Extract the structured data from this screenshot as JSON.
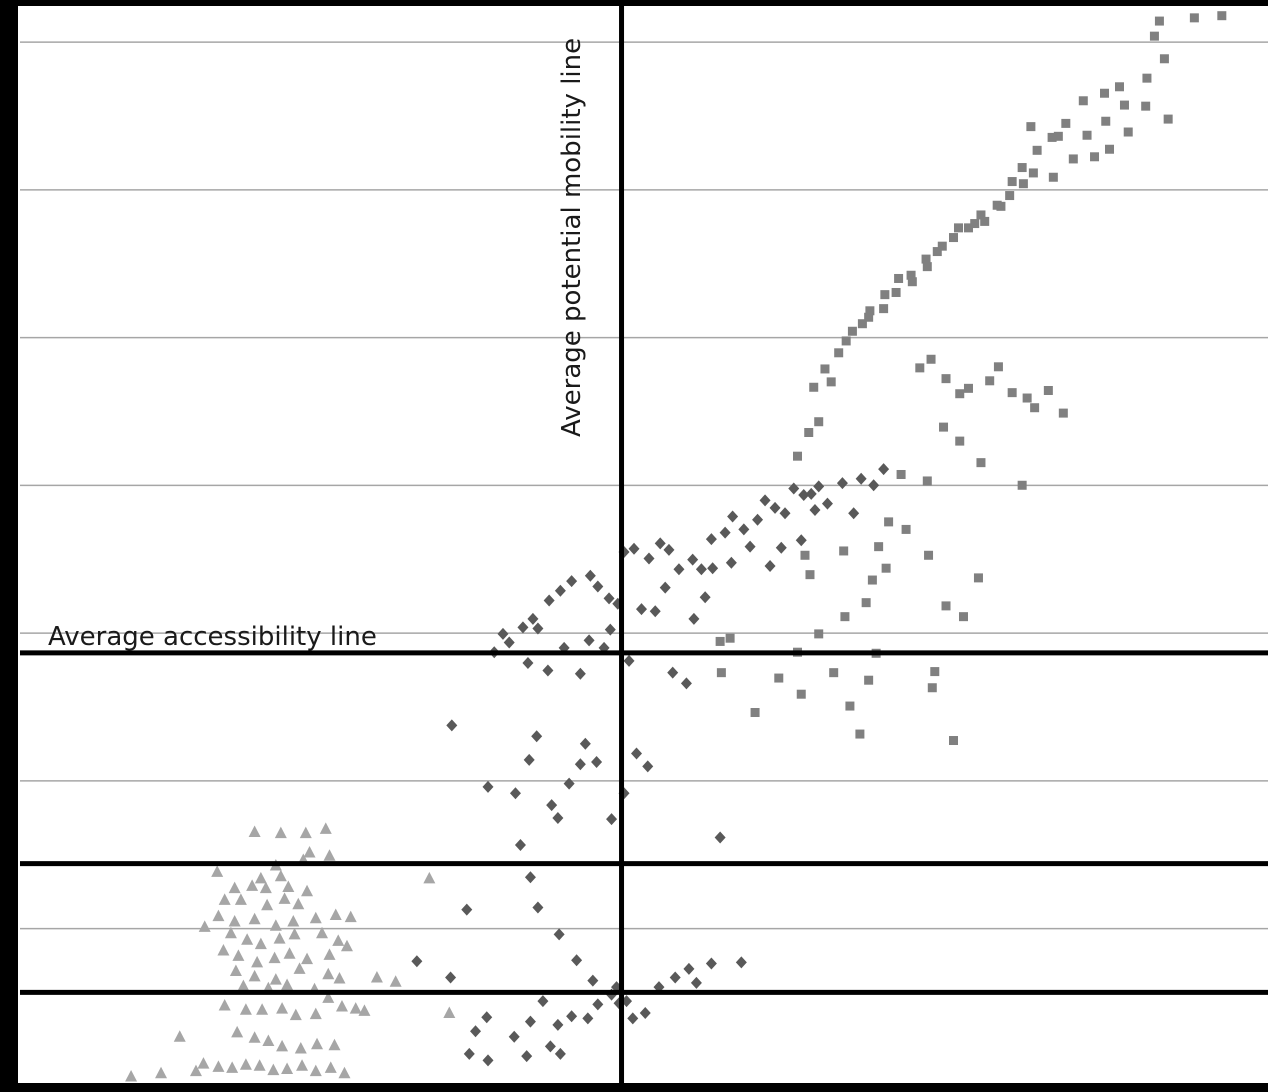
{
  "chart_data": {
    "type": "scatter",
    "title": "",
    "xlabel": "",
    "ylabel": "",
    "xlim": [
      0,
      100
    ],
    "ylim": [
      0,
      100
    ],
    "grid": true,
    "gridlines_y": [
      14.33,
      28.05,
      41.77,
      55.49,
      69.21,
      82.93,
      96.65
    ],
    "colors": {
      "background": "#ffffff",
      "frame": "#000000",
      "grid": "#a6a6a6",
      "reference_line": "#000000",
      "triangles": "#a6a6a6",
      "diamonds": "#595959",
      "squares": "#808080"
    },
    "annotations": {
      "horizontal_label": "Average accessibility line",
      "vertical_label": "Average potential mobility line"
    },
    "reference_lines": {
      "vertical_x": 48.2,
      "horizontal_y": [
        39.94,
        20.37,
        8.42
      ]
    },
    "series": [
      {
        "marker": "triangle",
        "points": [
          [
            18.8,
            23.3
          ],
          [
            20.9,
            23.2
          ],
          [
            22.9,
            23.2
          ],
          [
            24.5,
            23.6
          ],
          [
            23.2,
            21.4
          ],
          [
            24.8,
            21.1
          ],
          [
            22.7,
            20.7
          ],
          [
            20.5,
            20.2
          ],
          [
            15.8,
            19.6
          ],
          [
            19.3,
            19.0
          ],
          [
            20.9,
            19.2
          ],
          [
            32.8,
            19.0
          ],
          [
            17.2,
            18.1
          ],
          [
            18.6,
            18.3
          ],
          [
            19.7,
            18.1
          ],
          [
            21.5,
            18.2
          ],
          [
            23.0,
            17.8
          ],
          [
            16.4,
            17.0
          ],
          [
            17.7,
            17.0
          ],
          [
            19.8,
            16.5
          ],
          [
            21.2,
            17.1
          ],
          [
            22.3,
            16.6
          ],
          [
            15.9,
            15.5
          ],
          [
            17.2,
            15.0
          ],
          [
            18.8,
            15.2
          ],
          [
            20.5,
            14.6
          ],
          [
            21.9,
            15.0
          ],
          [
            23.7,
            15.3
          ],
          [
            25.3,
            15.6
          ],
          [
            26.5,
            15.4
          ],
          [
            14.8,
            14.5
          ],
          [
            16.9,
            13.9
          ],
          [
            18.2,
            13.3
          ],
          [
            19.3,
            12.9
          ],
          [
            20.8,
            13.4
          ],
          [
            22.0,
            13.8
          ],
          [
            24.2,
            13.9
          ],
          [
            25.5,
            13.2
          ],
          [
            26.2,
            12.7
          ],
          [
            16.3,
            12.3
          ],
          [
            17.5,
            11.8
          ],
          [
            19.0,
            11.2
          ],
          [
            20.4,
            11.6
          ],
          [
            21.6,
            12.0
          ],
          [
            23.0,
            11.5
          ],
          [
            24.8,
            11.9
          ],
          [
            28.6,
            9.8
          ],
          [
            30.1,
            9.4
          ],
          [
            17.3,
            10.4
          ],
          [
            18.8,
            9.9
          ],
          [
            20.5,
            9.6
          ],
          [
            22.4,
            10.6
          ],
          [
            24.7,
            10.1
          ],
          [
            25.6,
            9.7
          ],
          [
            17.9,
            9.0
          ],
          [
            19.9,
            8.8
          ],
          [
            21.4,
            9.1
          ],
          [
            23.6,
            8.7
          ],
          [
            24.7,
            7.9
          ],
          [
            25.8,
            7.1
          ],
          [
            26.9,
            6.9
          ],
          [
            27.6,
            6.7
          ],
          [
            34.4,
            6.5
          ],
          [
            16.4,
            7.2
          ],
          [
            18.1,
            6.8
          ],
          [
            19.4,
            6.8
          ],
          [
            21.0,
            6.9
          ],
          [
            22.1,
            6.3
          ],
          [
            23.7,
            6.4
          ],
          [
            12.8,
            4.3
          ],
          [
            17.4,
            4.7
          ],
          [
            18.8,
            4.2
          ],
          [
            19.9,
            3.9
          ],
          [
            21.0,
            3.4
          ],
          [
            22.5,
            3.2
          ],
          [
            23.8,
            3.6
          ],
          [
            25.2,
            3.5
          ],
          [
            14.7,
            1.8
          ],
          [
            15.9,
            1.5
          ],
          [
            17.0,
            1.4
          ],
          [
            18.1,
            1.7
          ],
          [
            19.2,
            1.6
          ],
          [
            20.3,
            1.2
          ],
          [
            21.4,
            1.3
          ],
          [
            22.6,
            1.6
          ],
          [
            23.7,
            1.1
          ],
          [
            24.9,
            1.4
          ],
          [
            26.0,
            0.9
          ],
          [
            8.9,
            0.6
          ],
          [
            11.3,
            0.9
          ],
          [
            14.1,
            1.1
          ]
        ]
      },
      {
        "marker": "diamond",
        "points": [
          [
            38.7,
            41.7
          ],
          [
            40.3,
            42.3
          ],
          [
            41.1,
            43.1
          ],
          [
            42.4,
            44.8
          ],
          [
            43.3,
            45.7
          ],
          [
            44.2,
            46.6
          ],
          [
            45.7,
            47.1
          ],
          [
            46.3,
            46.1
          ],
          [
            47.2,
            45.0
          ],
          [
            47.9,
            44.5
          ],
          [
            48.4,
            49.3
          ],
          [
            49.2,
            49.6
          ],
          [
            50.4,
            48.7
          ],
          [
            51.3,
            50.1
          ],
          [
            52.0,
            49.5
          ],
          [
            52.8,
            47.7
          ],
          [
            53.9,
            48.6
          ],
          [
            54.6,
            47.7
          ],
          [
            55.4,
            50.5
          ],
          [
            56.5,
            51.1
          ],
          [
            57.1,
            52.6
          ],
          [
            58.0,
            51.4
          ],
          [
            59.1,
            52.3
          ],
          [
            59.7,
            54.1
          ],
          [
            60.5,
            53.4
          ],
          [
            61.3,
            52.9
          ],
          [
            62.0,
            55.2
          ],
          [
            62.8,
            54.6
          ],
          [
            63.4,
            54.7
          ],
          [
            64.0,
            55.4
          ],
          [
            64.7,
            53.8
          ],
          [
            65.9,
            55.7
          ],
          [
            66.8,
            52.9
          ],
          [
            67.4,
            56.1
          ],
          [
            68.4,
            55.5
          ],
          [
            69.2,
            57.0
          ],
          [
            38.0,
            40.0
          ],
          [
            39.2,
            40.9
          ],
          [
            40.7,
            39.0
          ],
          [
            41.5,
            42.2
          ],
          [
            42.3,
            38.3
          ],
          [
            43.6,
            40.4
          ],
          [
            44.9,
            38.0
          ],
          [
            45.6,
            41.1
          ],
          [
            46.8,
            40.4
          ],
          [
            47.3,
            42.1
          ],
          [
            48.8,
            39.2
          ],
          [
            49.8,
            44.0
          ],
          [
            50.9,
            43.8
          ],
          [
            51.7,
            46.0
          ],
          [
            52.3,
            38.1
          ],
          [
            53.4,
            37.1
          ],
          [
            54.0,
            43.1
          ],
          [
            54.9,
            45.1
          ],
          [
            55.5,
            47.8
          ],
          [
            57.0,
            48.3
          ],
          [
            58.5,
            49.8
          ],
          [
            60.1,
            48.0
          ],
          [
            61.0,
            49.7
          ],
          [
            62.6,
            50.4
          ],
          [
            63.7,
            53.2
          ],
          [
            34.6,
            33.2
          ],
          [
            37.5,
            27.5
          ],
          [
            39.7,
            26.9
          ],
          [
            40.8,
            30.0
          ],
          [
            41.4,
            32.2
          ],
          [
            42.6,
            25.8
          ],
          [
            43.1,
            24.6
          ],
          [
            44.0,
            27.8
          ],
          [
            44.9,
            29.6
          ],
          [
            45.3,
            31.5
          ],
          [
            46.2,
            29.8
          ],
          [
            47.4,
            24.5
          ],
          [
            48.4,
            26.9
          ],
          [
            49.4,
            30.6
          ],
          [
            50.3,
            29.4
          ],
          [
            56.1,
            22.8
          ],
          [
            40.1,
            22.1
          ],
          [
            40.9,
            19.1
          ],
          [
            41.5,
            16.3
          ],
          [
            43.2,
            13.8
          ],
          [
            44.6,
            11.4
          ],
          [
            45.9,
            9.5
          ],
          [
            47.4,
            8.2
          ],
          [
            48.0,
            7.4
          ],
          [
            49.1,
            6.0
          ],
          [
            50.1,
            6.5
          ],
          [
            51.2,
            8.9
          ],
          [
            52.5,
            9.8
          ],
          [
            53.6,
            10.6
          ],
          [
            54.2,
            9.3
          ],
          [
            55.4,
            11.1
          ],
          [
            57.8,
            11.2
          ],
          [
            35.8,
            16.1
          ],
          [
            31.8,
            11.3
          ],
          [
            34.5,
            9.8
          ],
          [
            36.5,
            4.8
          ],
          [
            37.4,
            6.1
          ],
          [
            39.6,
            4.3
          ],
          [
            40.9,
            5.7
          ],
          [
            41.9,
            7.6
          ],
          [
            43.1,
            5.4
          ],
          [
            44.2,
            6.2
          ],
          [
            45.5,
            6.0
          ],
          [
            46.3,
            7.3
          ],
          [
            47.8,
            8.9
          ],
          [
            48.6,
            7.6
          ],
          [
            36.0,
            2.7
          ],
          [
            37.5,
            2.1
          ],
          [
            40.6,
            2.5
          ],
          [
            42.5,
            3.4
          ],
          [
            43.3,
            2.7
          ]
        ]
      },
      {
        "marker": "square",
        "points": [
          [
            96.3,
            99.1
          ],
          [
            94.1,
            98.9
          ],
          [
            91.3,
            98.6
          ],
          [
            90.9,
            97.2
          ],
          [
            91.7,
            95.1
          ],
          [
            90.3,
            93.3
          ],
          [
            88.1,
            92.5
          ],
          [
            86.9,
            91.9
          ],
          [
            85.2,
            91.2
          ],
          [
            83.8,
            89.1
          ],
          [
            82.7,
            87.8
          ],
          [
            81.5,
            86.6
          ],
          [
            80.3,
            85.0
          ],
          [
            79.5,
            83.7
          ],
          [
            78.6,
            81.4
          ],
          [
            77.3,
            80.0
          ],
          [
            76.5,
            79.8
          ],
          [
            75.2,
            79.4
          ],
          [
            73.9,
            77.7
          ],
          [
            72.6,
            76.5
          ],
          [
            71.4,
            75.0
          ],
          [
            70.4,
            74.7
          ],
          [
            69.3,
            73.2
          ],
          [
            68.1,
            71.7
          ],
          [
            67.5,
            70.5
          ],
          [
            66.2,
            68.9
          ],
          [
            65.0,
            65.1
          ],
          [
            64.0,
            61.4
          ],
          [
            63.2,
            60.4
          ],
          [
            62.3,
            58.2
          ],
          [
            88.8,
            88.3
          ],
          [
            87.3,
            86.7
          ],
          [
            86.1,
            86.0
          ],
          [
            84.4,
            85.8
          ],
          [
            82.8,
            84.1
          ],
          [
            81.2,
            84.5
          ],
          [
            80.4,
            83.5
          ],
          [
            79.3,
            82.4
          ],
          [
            78.3,
            81.5
          ],
          [
            77.0,
            80.6
          ],
          [
            76.0,
            79.4
          ],
          [
            74.8,
            78.5
          ],
          [
            73.5,
            77.2
          ],
          [
            72.7,
            75.8
          ],
          [
            71.5,
            74.4
          ],
          [
            70.2,
            73.4
          ],
          [
            69.2,
            71.9
          ],
          [
            68.0,
            71.1
          ],
          [
            66.7,
            69.8
          ],
          [
            65.6,
            67.8
          ],
          [
            64.5,
            66.3
          ],
          [
            63.6,
            64.6
          ],
          [
            72.1,
            66.4
          ],
          [
            73.0,
            67.2
          ],
          [
            74.2,
            65.4
          ],
          [
            75.3,
            64.0
          ],
          [
            76.0,
            64.5
          ],
          [
            77.7,
            65.2
          ],
          [
            78.4,
            66.5
          ],
          [
            79.5,
            64.1
          ],
          [
            80.7,
            63.6
          ],
          [
            81.3,
            62.7
          ],
          [
            82.4,
            64.3
          ],
          [
            83.6,
            62.2
          ],
          [
            80.3,
            55.5
          ],
          [
            77.0,
            57.6
          ],
          [
            75.3,
            59.6
          ],
          [
            74.0,
            60.9
          ],
          [
            72.7,
            55.9
          ],
          [
            70.6,
            56.5
          ],
          [
            71.0,
            51.4
          ],
          [
            69.6,
            52.1
          ],
          [
            68.8,
            49.8
          ],
          [
            69.4,
            47.8
          ],
          [
            68.3,
            46.7
          ],
          [
            67.8,
            44.6
          ],
          [
            64.0,
            41.7
          ],
          [
            66.1,
            43.3
          ],
          [
            72.8,
            49.0
          ],
          [
            74.2,
            44.3
          ],
          [
            75.6,
            43.3
          ],
          [
            76.8,
            46.9
          ],
          [
            68.6,
            39.9
          ],
          [
            68.0,
            37.4
          ],
          [
            73.3,
            38.2
          ],
          [
            73.1,
            36.7
          ],
          [
            60.8,
            37.6
          ],
          [
            62.3,
            40.0
          ],
          [
            56.1,
            41.0
          ],
          [
            56.9,
            41.3
          ],
          [
            56.2,
            38.1
          ],
          [
            58.9,
            34.4
          ],
          [
            62.6,
            36.1
          ],
          [
            65.2,
            38.1
          ],
          [
            66.5,
            35.0
          ],
          [
            67.3,
            32.4
          ],
          [
            74.8,
            31.8
          ],
          [
            63.3,
            47.2
          ],
          [
            62.9,
            49.0
          ],
          [
            66.0,
            49.4
          ],
          [
            88.5,
            90.8
          ],
          [
            90.2,
            90.7
          ],
          [
            92.0,
            89.5
          ],
          [
            85.5,
            88.0
          ],
          [
            87.0,
            89.3
          ],
          [
            83.2,
            87.9
          ],
          [
            81.0,
            88.8
          ]
        ]
      }
    ]
  }
}
